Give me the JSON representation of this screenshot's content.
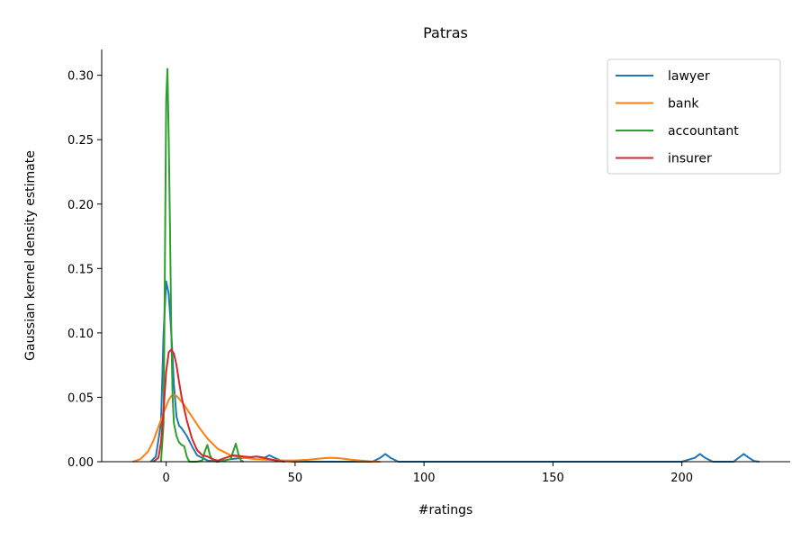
{
  "chart_data": {
    "type": "line",
    "title": "Patras",
    "xlabel": "#ratings",
    "ylabel": "Gaussian kernel density estimate",
    "xlim": [
      -25,
      242
    ],
    "ylim": [
      0,
      0.32
    ],
    "xticks": [
      0,
      50,
      100,
      150,
      200
    ],
    "yticks": [
      0.0,
      0.05,
      0.1,
      0.15,
      0.2,
      0.25,
      0.3
    ],
    "grid": false,
    "legend_position": "top-right",
    "series": [
      {
        "name": "lawyer",
        "color": "#1f77b4",
        "x": [
          -6,
          -4,
          -2,
          -1,
          0,
          1,
          2,
          3,
          4,
          5,
          6,
          8,
          10,
          12,
          14,
          16,
          18,
          20,
          25,
          30,
          35,
          38,
          40,
          42,
          45,
          50,
          60,
          70,
          80,
          83,
          85,
          87,
          90,
          100,
          150,
          200,
          205,
          207,
          209,
          212,
          215,
          220,
          222,
          224,
          226,
          228,
          230
        ],
        "y": [
          0,
          0.004,
          0.03,
          0.1,
          0.14,
          0.13,
          0.1,
          0.06,
          0.035,
          0.028,
          0.026,
          0.02,
          0.012,
          0.005,
          0.003,
          0.001,
          0.0005,
          0,
          0.002,
          0.003,
          0.004,
          0.003,
          0.005,
          0.003,
          0.0005,
          0,
          0,
          0,
          0,
          0.003,
          0.006,
          0.003,
          0,
          0,
          0,
          0,
          0.003,
          0.006,
          0.003,
          0,
          0,
          0,
          0.003,
          0.006,
          0.003,
          0.0005,
          0
        ]
      },
      {
        "name": "bank",
        "color": "#ff7f0e",
        "x": [
          -13,
          -10,
          -7,
          -5,
          -3,
          -1,
          0,
          1,
          2,
          3,
          4,
          5,
          7,
          10,
          13,
          16,
          20,
          25,
          30,
          35,
          40,
          45,
          50,
          55,
          60,
          63,
          65,
          68,
          72,
          76,
          80,
          83
        ],
        "y": [
          0,
          0.002,
          0.008,
          0.016,
          0.027,
          0.038,
          0.043,
          0.048,
          0.051,
          0.052,
          0.051,
          0.049,
          0.044,
          0.035,
          0.026,
          0.018,
          0.01,
          0.005,
          0.003,
          0.002,
          0.0015,
          0.001,
          0.001,
          0.0015,
          0.0025,
          0.003,
          0.003,
          0.0025,
          0.0015,
          0.0008,
          0.0002,
          0
        ]
      },
      {
        "name": "accountant",
        "color": "#2ca02c",
        "x": [
          -2,
          -1,
          -0.5,
          0,
          0.5,
          1,
          1.5,
          2,
          2.5,
          3,
          4,
          5,
          6,
          7,
          8,
          9,
          12,
          14,
          15,
          16,
          17,
          18,
          20,
          25,
          26,
          27,
          28,
          29,
          30
        ],
        "y": [
          0,
          0.03,
          0.15,
          0.28,
          0.305,
          0.25,
          0.18,
          0.1,
          0.05,
          0.03,
          0.02,
          0.015,
          0.013,
          0.012,
          0.004,
          0,
          0,
          0.001,
          0.008,
          0.013,
          0.005,
          0.001,
          0,
          0.002,
          0.008,
          0.014,
          0.006,
          0.001,
          0
        ]
      },
      {
        "name": "insurer",
        "color": "#d62728",
        "x": [
          -5,
          -3,
          -2,
          -1,
          0,
          1,
          2,
          3,
          4,
          5,
          6,
          8,
          10,
          12,
          14,
          16,
          18,
          20,
          23,
          26,
          30,
          33,
          35,
          37,
          40,
          43,
          46
        ],
        "y": [
          0,
          0.003,
          0.015,
          0.04,
          0.07,
          0.085,
          0.087,
          0.084,
          0.075,
          0.062,
          0.05,
          0.032,
          0.018,
          0.009,
          0.005,
          0.004,
          0.002,
          0.0008,
          0.003,
          0.005,
          0.004,
          0.0035,
          0.004,
          0.0035,
          0.002,
          0.0008,
          0
        ]
      }
    ]
  }
}
